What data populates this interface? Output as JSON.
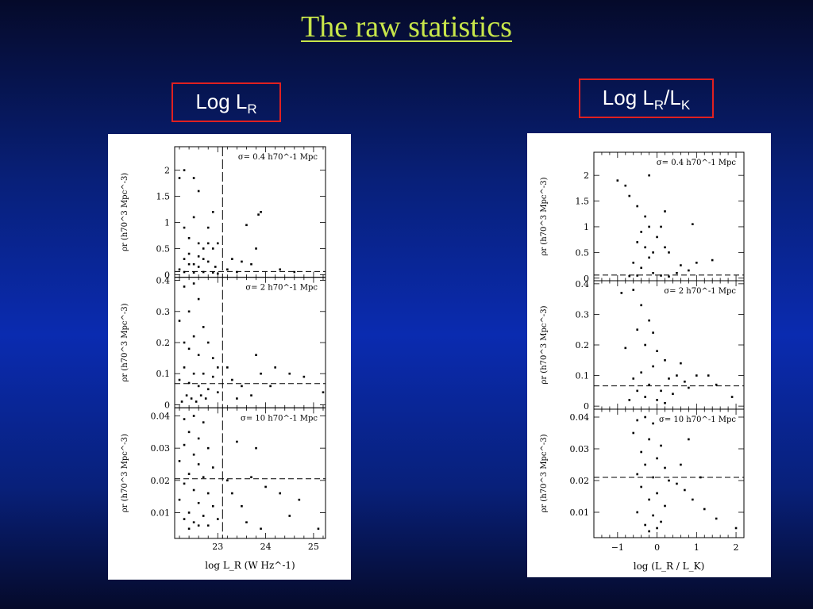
{
  "slide": {
    "title": "The raw statistics"
  },
  "labels": {
    "left": {
      "main": "Log L",
      "sub": "R"
    },
    "right": {
      "main1": "Log L",
      "sub1": "R",
      "slash": "/L",
      "sub2": "K"
    }
  },
  "colors": {
    "title": "#c8e64a",
    "box_border": "#e02020",
    "label_text": "#ffffff",
    "background": "#0a2bb0"
  },
  "chart_data": [
    {
      "type": "scatter",
      "name": "Log L_R",
      "xlabel": "log L_R (W Hz^-1)",
      "x_ticks": [
        "23",
        "24",
        "25"
      ],
      "xlim": [
        22.1,
        25.25
      ],
      "x_marker": 23.1,
      "panels": [
        {
          "annotation": "σ= 0.4 h70^-1 Mpc",
          "ylabel": "ρr (h70^3 Mpc^-3)",
          "y_ticks": [
            "2",
            "1.5",
            "1",
            "0.5",
            "0"
          ],
          "ylim": [
            -0.05,
            2.45
          ],
          "threshold": 0.06,
          "points": [
            [
              22.2,
              1.85
            ],
            [
              22.3,
              2.0
            ],
            [
              22.5,
              1.85
            ],
            [
              22.6,
              1.6
            ],
            [
              22.5,
              1.1
            ],
            [
              22.3,
              0.9
            ],
            [
              22.4,
              0.7
            ],
            [
              22.6,
              0.6
            ],
            [
              22.7,
              0.5
            ],
            [
              22.8,
              0.6
            ],
            [
              22.9,
              0.5
            ],
            [
              23.0,
              0.6
            ],
            [
              22.9,
              1.2
            ],
            [
              22.8,
              0.9
            ],
            [
              22.4,
              0.4
            ],
            [
              22.5,
              0.2
            ],
            [
              22.3,
              0.3
            ],
            [
              22.2,
              0.1
            ],
            [
              22.3,
              0.05
            ],
            [
              22.5,
              0.04
            ],
            [
              22.7,
              0.05
            ],
            [
              22.9,
              0.04
            ],
            [
              23.0,
              0.02
            ],
            [
              22.6,
              0.15
            ],
            [
              22.7,
              0.3
            ],
            [
              22.4,
              0.2
            ],
            [
              22.6,
              0.35
            ],
            [
              22.8,
              0.25
            ],
            [
              22.95,
              0.15
            ],
            [
              23.3,
              0.3
            ],
            [
              23.5,
              0.25
            ],
            [
              23.6,
              0.95
            ],
            [
              23.85,
              1.15
            ],
            [
              23.9,
              1.2
            ],
            [
              23.8,
              0.5
            ],
            [
              23.7,
              0.2
            ],
            [
              24.3,
              0.1
            ],
            [
              24.6,
              0.05
            ],
            [
              23.2,
              0.1
            ],
            [
              23.4,
              0.05
            ]
          ]
        },
        {
          "annotation": "σ= 2 h70^-1 Mpc",
          "ylabel": "ρr (h70^3 Mpc^-3)",
          "y_ticks": [
            "0.4",
            "0.3",
            "0.2",
            "0.1",
            "0"
          ],
          "ylim": [
            -0.01,
            0.41
          ],
          "threshold": 0.068,
          "points": [
            [
              22.3,
              0.38
            ],
            [
              22.5,
              0.39
            ],
            [
              22.6,
              0.34
            ],
            [
              22.4,
              0.3
            ],
            [
              22.2,
              0.27
            ],
            [
              22.7,
              0.25
            ],
            [
              22.5,
              0.22
            ],
            [
              22.3,
              0.2
            ],
            [
              22.4,
              0.18
            ],
            [
              22.6,
              0.16
            ],
            [
              22.8,
              0.2
            ],
            [
              22.9,
              0.15
            ],
            [
              23.0,
              0.12
            ],
            [
              22.3,
              0.12
            ],
            [
              22.5,
              0.1
            ],
            [
              22.7,
              0.1
            ],
            [
              22.9,
              0.09
            ],
            [
              22.2,
              0.08
            ],
            [
              22.4,
              0.07
            ],
            [
              22.6,
              0.06
            ],
            [
              22.8,
              0.05
            ],
            [
              23.0,
              0.04
            ],
            [
              22.35,
              0.03
            ],
            [
              22.45,
              0.02
            ],
            [
              22.55,
              0.01
            ],
            [
              22.65,
              0.03
            ],
            [
              22.75,
              0.02
            ],
            [
              22.25,
              0.01
            ],
            [
              23.2,
              0.12
            ],
            [
              23.3,
              0.08
            ],
            [
              23.5,
              0.06
            ],
            [
              23.8,
              0.16
            ],
            [
              23.9,
              0.1
            ],
            [
              24.2,
              0.12
            ],
            [
              24.5,
              0.1
            ],
            [
              24.8,
              0.09
            ],
            [
              25.2,
              0.04
            ],
            [
              23.4,
              0.02
            ],
            [
              23.7,
              0.03
            ],
            [
              24.1,
              0.06
            ]
          ]
        },
        {
          "annotation": "σ= 10 h70^-1 Mpc",
          "ylabel": "ρr (h70^3 Mpc^-3)",
          "y_ticks": [
            "0.04",
            "0.03",
            "0.02",
            "0.01"
          ],
          "ylim": [
            0.002,
            0.0425
          ],
          "threshold": 0.0205,
          "points": [
            [
              22.3,
              0.039
            ],
            [
              22.5,
              0.04
            ],
            [
              22.7,
              0.038
            ],
            [
              22.4,
              0.035
            ],
            [
              22.6,
              0.033
            ],
            [
              22.3,
              0.031
            ],
            [
              22.8,
              0.03
            ],
            [
              22.5,
              0.028
            ],
            [
              22.2,
              0.026
            ],
            [
              22.6,
              0.025
            ],
            [
              22.9,
              0.024
            ],
            [
              22.4,
              0.022
            ],
            [
              22.7,
              0.021
            ],
            [
              22.3,
              0.019
            ],
            [
              22.5,
              0.017
            ],
            [
              22.8,
              0.016
            ],
            [
              22.2,
              0.014
            ],
            [
              22.6,
              0.013
            ],
            [
              22.9,
              0.012
            ],
            [
              22.4,
              0.01
            ],
            [
              22.7,
              0.009
            ],
            [
              22.3,
              0.008
            ],
            [
              22.5,
              0.007
            ],
            [
              22.6,
              0.006
            ],
            [
              22.4,
              0.005
            ],
            [
              22.8,
              0.006
            ],
            [
              23.0,
              0.008
            ],
            [
              23.2,
              0.02
            ],
            [
              23.3,
              0.016
            ],
            [
              23.5,
              0.012
            ],
            [
              23.7,
              0.021
            ],
            [
              23.8,
              0.03
            ],
            [
              24.0,
              0.018
            ],
            [
              24.3,
              0.016
            ],
            [
              24.7,
              0.014
            ],
            [
              24.5,
              0.009
            ],
            [
              23.6,
              0.007
            ],
            [
              23.9,
              0.005
            ],
            [
              25.1,
              0.005
            ],
            [
              23.4,
              0.032
            ]
          ]
        }
      ]
    },
    {
      "type": "scatter",
      "name": "Log L_R/L_K",
      "xlabel": "log (L_R / L_K)",
      "x_ticks": [
        "−1",
        "0",
        "1",
        "2"
      ],
      "xlim": [
        -1.6,
        2.2
      ],
      "panels": [
        {
          "annotation": "σ= 0.4 h70^-1 Mpc",
          "ylabel": "ρr (h70^3 Mpc^-3)",
          "y_ticks": [
            "2",
            "1.5",
            "1",
            "0.5",
            "0"
          ],
          "ylim": [
            -0.05,
            2.45
          ],
          "threshold": 0.06,
          "points": [
            [
              -1.0,
              1.9
            ],
            [
              -0.8,
              1.8
            ],
            [
              -0.7,
              1.6
            ],
            [
              -0.5,
              1.4
            ],
            [
              -0.3,
              1.2
            ],
            [
              -0.2,
              1.0
            ],
            [
              -0.4,
              0.9
            ],
            [
              -0.5,
              0.7
            ],
            [
              -0.3,
              0.6
            ],
            [
              -0.1,
              0.5
            ],
            [
              0.0,
              0.8
            ],
            [
              0.1,
              1.0
            ],
            [
              0.2,
              0.6
            ],
            [
              0.3,
              0.5
            ],
            [
              -0.2,
              0.4
            ],
            [
              -0.6,
              0.3
            ],
            [
              -0.4,
              0.2
            ],
            [
              -0.1,
              0.1
            ],
            [
              0.1,
              0.05
            ],
            [
              0.3,
              0.03
            ],
            [
              -0.5,
              0.05
            ],
            [
              -0.7,
              0.04
            ],
            [
              0.5,
              0.1
            ],
            [
              0.6,
              0.25
            ],
            [
              0.8,
              0.15
            ],
            [
              1.0,
              0.3
            ],
            [
              1.4,
              0.35
            ],
            [
              -0.2,
              2.0
            ],
            [
              0.2,
              1.3
            ],
            [
              0.9,
              1.05
            ]
          ]
        },
        {
          "annotation": "σ= 2 h70^-1 Mpc",
          "ylabel": "ρr (h70^3 Mpc^-3)",
          "y_ticks": [
            "0.4",
            "0.3",
            "0.2",
            "0.1",
            "0"
          ],
          "ylim": [
            -0.01,
            0.41
          ],
          "threshold": 0.066,
          "points": [
            [
              -0.9,
              0.37
            ],
            [
              -0.6,
              0.38
            ],
            [
              -0.4,
              0.33
            ],
            [
              -0.2,
              0.28
            ],
            [
              -0.5,
              0.25
            ],
            [
              -0.8,
              0.19
            ],
            [
              -0.3,
              0.2
            ],
            [
              0.0,
              0.18
            ],
            [
              0.2,
              0.15
            ],
            [
              -0.1,
              0.13
            ],
            [
              -0.4,
              0.11
            ],
            [
              -0.6,
              0.09
            ],
            [
              0.3,
              0.09
            ],
            [
              0.5,
              0.1
            ],
            [
              0.7,
              0.08
            ],
            [
              -0.2,
              0.07
            ],
            [
              -0.5,
              0.05
            ],
            [
              0.1,
              0.05
            ],
            [
              0.4,
              0.04
            ],
            [
              -0.3,
              0.03
            ],
            [
              0.0,
              0.02
            ],
            [
              0.2,
              0.01
            ],
            [
              -0.7,
              0.02
            ],
            [
              0.8,
              0.06
            ],
            [
              1.0,
              0.1
            ],
            [
              1.3,
              0.1
            ],
            [
              1.5,
              0.07
            ],
            [
              0.6,
              0.14
            ],
            [
              -0.1,
              0.24
            ],
            [
              1.9,
              0.03
            ]
          ]
        },
        {
          "annotation": "σ= 10 h70^-1 Mpc",
          "ylabel": "ρr (h70^3 Mpc^-3)",
          "y_ticks": [
            "0.04",
            "0.03",
            "0.02",
            "0.01"
          ],
          "ylim": [
            0.002,
            0.0425
          ],
          "threshold": 0.021,
          "points": [
            [
              -0.5,
              0.039
            ],
            [
              -0.3,
              0.04
            ],
            [
              -0.1,
              0.038
            ],
            [
              -0.6,
              0.035
            ],
            [
              -0.2,
              0.033
            ],
            [
              0.1,
              0.031
            ],
            [
              -0.4,
              0.029
            ],
            [
              0.0,
              0.027
            ],
            [
              -0.3,
              0.025
            ],
            [
              0.2,
              0.024
            ],
            [
              -0.5,
              0.022
            ],
            [
              -0.1,
              0.021
            ],
            [
              0.3,
              0.02
            ],
            [
              -0.4,
              0.018
            ],
            [
              0.0,
              0.016
            ],
            [
              -0.2,
              0.014
            ],
            [
              0.2,
              0.012
            ],
            [
              -0.5,
              0.01
            ],
            [
              -0.1,
              0.009
            ],
            [
              0.1,
              0.007
            ],
            [
              -0.3,
              0.006
            ],
            [
              0.0,
              0.005
            ],
            [
              -0.2,
              0.004
            ],
            [
              0.5,
              0.019
            ],
            [
              0.7,
              0.017
            ],
            [
              0.9,
              0.014
            ],
            [
              1.2,
              0.011
            ],
            [
              1.5,
              0.008
            ],
            [
              0.6,
              0.025
            ],
            [
              0.8,
              0.033
            ],
            [
              1.1,
              0.021
            ],
            [
              2.0,
              0.005
            ]
          ]
        }
      ]
    }
  ]
}
